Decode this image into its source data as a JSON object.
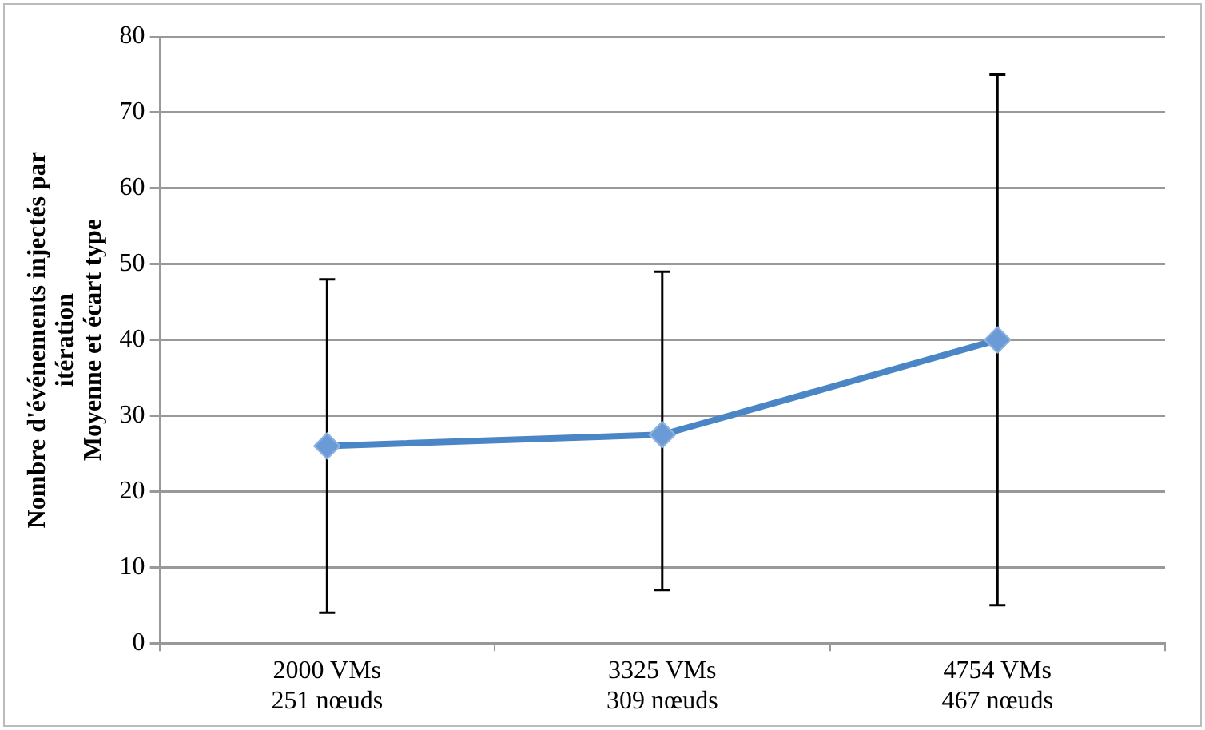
{
  "chart_data": {
    "type": "line",
    "ylabel": "Nombre d'événements injectés par\nitération\nMoyenne et écart type",
    "categories": [
      [
        "2000 VMs",
        "251 nœuds"
      ],
      [
        "3325 VMs",
        "309 nœuds"
      ],
      [
        "4754 VMs",
        "467 nœuds"
      ]
    ],
    "series": [
      {
        "color": "#4a86c5",
        "values": [
          26,
          27.5,
          40
        ],
        "errors": [
          [
            4,
            48
          ],
          [
            7,
            49
          ],
          [
            5,
            75
          ]
        ]
      }
    ],
    "ylim": [
      0,
      80
    ],
    "yticks": [
      0,
      10,
      20,
      30,
      40,
      50,
      60,
      70,
      80
    ],
    "grid": "y",
    "legend": false,
    "marker": "diamond",
    "line_style": "solid"
  }
}
